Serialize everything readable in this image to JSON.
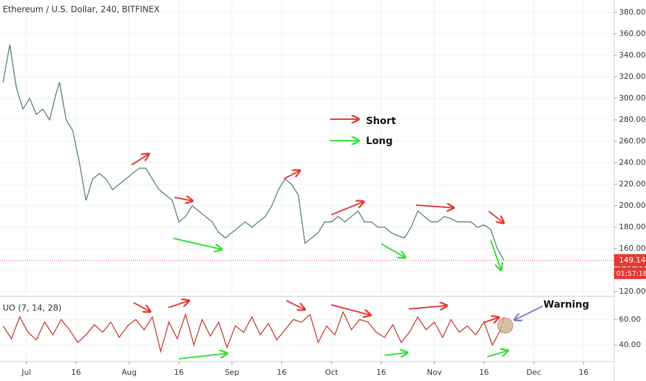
{
  "chart_data": [
    {
      "type": "line",
      "title": "Ethereum / U.S. Dollar, 240, BITFINEX",
      "x": [
        175,
        177,
        179,
        181,
        183,
        185,
        187,
        189,
        191,
        192,
        194,
        196,
        198,
        200,
        202,
        204,
        206,
        208,
        210,
        212,
        214,
        216,
        218,
        220,
        222,
        224,
        226,
        228,
        230,
        232,
        234,
        236,
        238,
        240,
        242,
        244,
        246,
        248,
        250,
        252,
        254,
        256,
        258,
        260,
        262,
        264,
        266,
        268,
        270,
        272,
        274,
        276,
        278,
        280,
        282,
        284,
        286,
        288,
        290,
        292,
        294,
        296,
        298,
        300,
        302,
        304,
        306,
        308,
        310,
        312,
        314,
        316,
        318,
        320,
        322,
        324,
        326
      ],
      "values": [
        315,
        350,
        310,
        290,
        300,
        285,
        290,
        280,
        305,
        315,
        280,
        270,
        240,
        205,
        225,
        230,
        225,
        215,
        220,
        225,
        230,
        235,
        235,
        225,
        215,
        210,
        205,
        185,
        190,
        200,
        195,
        190,
        185,
        175,
        170,
        175,
        180,
        185,
        180,
        185,
        190,
        200,
        215,
        225,
        220,
        210,
        165,
        170,
        175,
        185,
        185,
        190,
        185,
        190,
        195,
        185,
        185,
        180,
        180,
        175,
        172,
        170,
        180,
        195,
        190,
        185,
        185,
        190,
        188,
        185,
        185,
        185,
        180,
        182,
        178,
        160,
        149.14
      ],
      "color": "#4f7f6a",
      "xlim": [
        174.06,
        359.2
      ],
      "ylim": [
        115.5,
        391.6
      ],
      "yticks": [
        {
          "value": 120,
          "label": "120.00"
        },
        {
          "value": 140,
          "label": "140.00"
        },
        {
          "value": 160,
          "label": "160.00"
        },
        {
          "value": 180,
          "label": "180.00"
        },
        {
          "value": 200,
          "label": "200.00"
        },
        {
          "value": 220,
          "label": "220.00"
        },
        {
          "value": 240,
          "label": "240.00"
        },
        {
          "value": 260,
          "label": "260.00"
        },
        {
          "value": 280,
          "label": "280.00"
        },
        {
          "value": 300,
          "label": "300.00"
        },
        {
          "value": 320,
          "label": "320.00"
        },
        {
          "value": 340,
          "label": "340.00"
        },
        {
          "value": 360,
          "label": "360.00"
        },
        {
          "value": 380,
          "label": "380.00"
        }
      ],
      "last_price": 149.14,
      "countdown": "01:57:18",
      "annotations": [
        "Short",
        "Long"
      ],
      "grid": true
    },
    {
      "type": "line",
      "title": "UO (7, 14, 28)",
      "x": [
        175,
        177.5,
        180,
        182.5,
        185,
        187.5,
        190,
        192.5,
        195,
        197.5,
        200,
        202.5,
        205,
        207.5,
        210,
        212.5,
        215,
        217.5,
        220,
        222.5,
        225,
        227.5,
        230,
        232.5,
        235,
        237.5,
        240,
        242.5,
        245,
        247.5,
        250,
        252.5,
        255,
        257.5,
        260,
        262.5,
        265,
        267.5,
        270,
        272.5,
        275,
        277.5,
        280,
        282.5,
        285,
        287.5,
        290,
        292.5,
        295,
        297.5,
        300,
        302.5,
        305,
        307.5,
        310,
        312.5,
        315,
        317.5,
        320,
        322.5,
        325,
        326
      ],
      "values": [
        55,
        45,
        62,
        50,
        44,
        58,
        48,
        60,
        52,
        42,
        48,
        56,
        50,
        58,
        46,
        55,
        60,
        52,
        62,
        35,
        58,
        45,
        64,
        40,
        60,
        47,
        58,
        38,
        55,
        50,
        62,
        48,
        57,
        44,
        52,
        60,
        58,
        64,
        42,
        55,
        48,
        66,
        52,
        60,
        58,
        50,
        46,
        56,
        42,
        50,
        62,
        52,
        58,
        46,
        60,
        50,
        55,
        48,
        58,
        40,
        52,
        62
      ],
      "color": "#c0392b",
      "xlim": [
        174.06,
        359.2
      ],
      "ylim": [
        27,
        77
      ],
      "yticks": [
        {
          "value": 40,
          "label": "40.00"
        },
        {
          "value": 60,
          "label": "60.00"
        }
      ],
      "xticks": [
        {
          "value": 182,
          "label": "Jul"
        },
        {
          "value": 197,
          "label": "16"
        },
        {
          "value": 213,
          "label": "Aug"
        },
        {
          "value": 228,
          "label": "16"
        },
        {
          "value": 244,
          "label": "Sep"
        },
        {
          "value": 259,
          "label": "16"
        },
        {
          "value": 274,
          "label": "Oct"
        },
        {
          "value": 289,
          "label": "16"
        },
        {
          "value": 305,
          "label": "Nov"
        },
        {
          "value": 320,
          "label": "16"
        },
        {
          "value": 335,
          "label": "Dec"
        },
        {
          "value": 350,
          "label": "16"
        }
      ],
      "annotations": [
        "Warning"
      ],
      "grid": true
    }
  ]
}
